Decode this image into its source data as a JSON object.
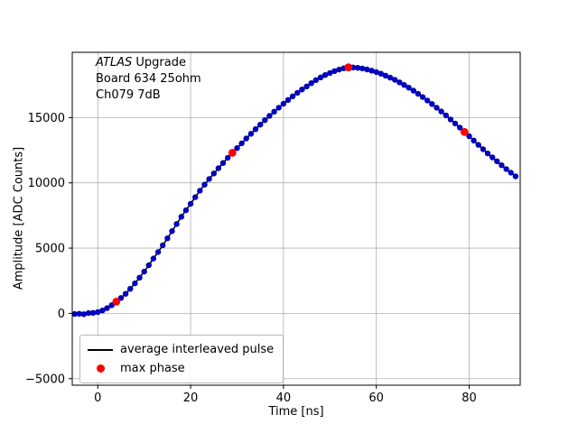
{
  "figure": {
    "background": "#ffffff"
  },
  "annotation": {
    "line1_italic": "ATLAS",
    "line1_rest": " Upgrade",
    "line2": "Board 634 25ohm",
    "line3": "Ch079 7dB"
  },
  "legend": {
    "position": "lower left",
    "items": [
      {
        "type": "line",
        "color": "#000000",
        "label": "average interleaved pulse"
      },
      {
        "type": "dot",
        "color": "#ff0000",
        "label": "max phase"
      }
    ]
  },
  "axes": {
    "xlabel": "Time [ns]",
    "ylabel": "Amplitude [ADC Counts]",
    "xlim": [
      -5.5,
      91
    ],
    "ylim": [
      -5500,
      20000
    ],
    "xticks": [
      0,
      20,
      40,
      60,
      80
    ],
    "xtick_labels": [
      "0",
      "20",
      "40",
      "60",
      "80"
    ],
    "yticks": [
      -5000,
      0,
      5000,
      10000,
      15000
    ],
    "ytick_labels": [
      "−5000",
      "0",
      "5000",
      "10000",
      "15000"
    ],
    "grid": true,
    "grid_color": "#b0b0b0",
    "frame_color": "#000000"
  },
  "chart_data": {
    "type": "line",
    "title": "",
    "xlabel": "Time [ns]",
    "ylabel": "Amplitude [ADC Counts]",
    "xlim": [
      -5.5,
      91
    ],
    "ylim": [
      -5500,
      20000
    ],
    "grid": true,
    "legend_position": "lower left",
    "annotations": [
      "ATLAS Upgrade",
      "Board 634 25ohm",
      "Ch079 7dB"
    ],
    "series": [
      {
        "name": "average interleaved pulse",
        "style": "line+markers",
        "line_color": "#000000",
        "marker_color": "#0000cd",
        "marker_edge": "#00008b",
        "x": [
          -5,
          -4,
          -3,
          -2,
          -1,
          0,
          1,
          2,
          3,
          4,
          5,
          6,
          7,
          8,
          9,
          10,
          11,
          12,
          13,
          14,
          15,
          16,
          17,
          18,
          19,
          20,
          21,
          22,
          23,
          24,
          25,
          26,
          27,
          28,
          29,
          30,
          31,
          32,
          33,
          34,
          35,
          36,
          37,
          38,
          39,
          40,
          41,
          42,
          43,
          44,
          45,
          46,
          47,
          48,
          49,
          50,
          51,
          52,
          53,
          54,
          55,
          56,
          57,
          58,
          59,
          60,
          61,
          62,
          63,
          64,
          65,
          66,
          67,
          68,
          69,
          70,
          71,
          72,
          73,
          74,
          75,
          76,
          77,
          78,
          79,
          80,
          81,
          82,
          83,
          84,
          85,
          86,
          87,
          88,
          89,
          90
        ],
        "y": [
          -50,
          -30,
          -60,
          20,
          40,
          100,
          220,
          400,
          630,
          900,
          1180,
          1500,
          1880,
          2300,
          2740,
          3200,
          3690,
          4200,
          4700,
          5220,
          5750,
          6300,
          6850,
          7400,
          7900,
          8400,
          8900,
          9400,
          9860,
          10300,
          10720,
          11120,
          11520,
          11920,
          12300,
          12660,
          13030,
          13400,
          13760,
          14110,
          14460,
          14800,
          15130,
          15450,
          15760,
          16060,
          16350,
          16630,
          16900,
          17150,
          17390,
          17640,
          17870,
          18080,
          18260,
          18420,
          18560,
          18680,
          18780,
          18850,
          18840,
          18810,
          18760,
          18690,
          18600,
          18490,
          18360,
          18220,
          18060,
          17890,
          17700,
          17500,
          17290,
          17060,
          16820,
          16570,
          16310,
          16040,
          15760,
          15470,
          15170,
          14860,
          14550,
          14230,
          13900,
          13570,
          13240,
          12910,
          12580,
          12250,
          11950,
          11650,
          11350,
          11060,
          10780,
          10500
        ]
      },
      {
        "name": "max phase",
        "style": "markers",
        "marker_color": "#ff0000",
        "x": [
          4,
          29,
          54,
          79
        ],
        "y": [
          900,
          12300,
          18850,
          13900
        ]
      }
    ]
  }
}
